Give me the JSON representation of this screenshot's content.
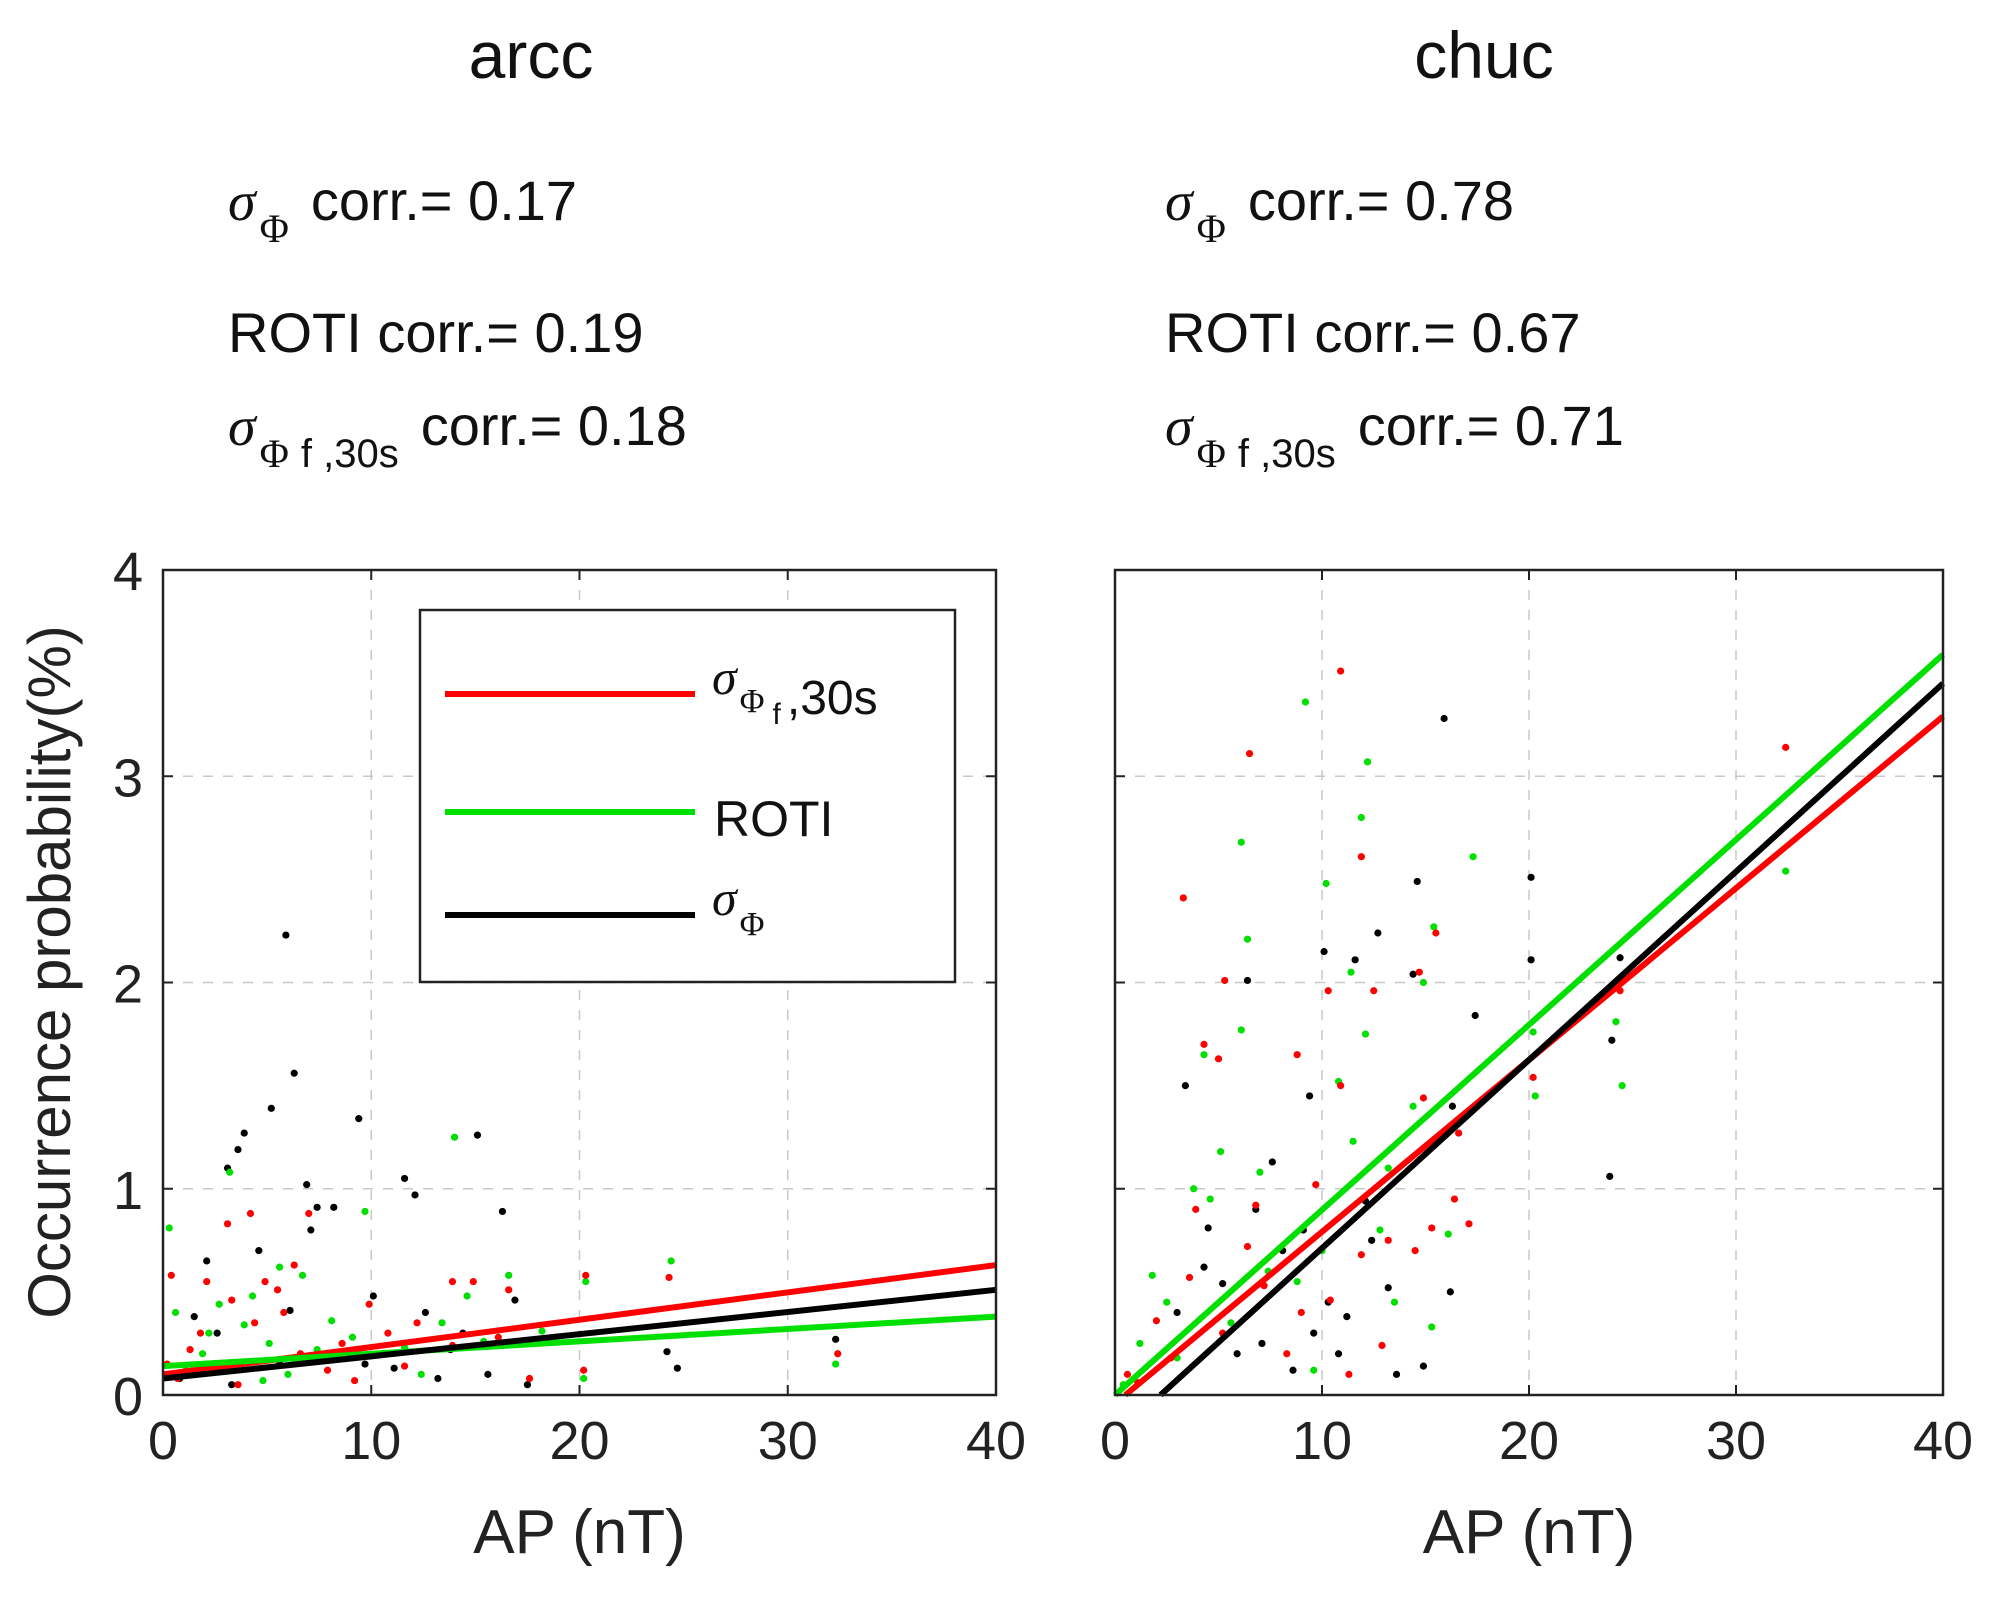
{
  "y_axis_label": "Occurrence probability(%)",
  "chart_data": [
    {
      "type": "scatter",
      "title": "arcc",
      "xlabel": "AP (nT)",
      "ylabel": "Occurrence probability(%)",
      "xlim": [
        0,
        40
      ],
      "ylim": [
        0,
        4
      ],
      "xticks": [
        "0",
        "10",
        "20",
        "30",
        "40"
      ],
      "yticks": [
        "0",
        "1",
        "2",
        "3",
        "4"
      ],
      "grid": true,
      "correlations": [
        {
          "label": "corr.= 0.17",
          "value": 0.17
        },
        {
          "label": "ROTI corr.= 0.19",
          "value": 0.19
        },
        {
          "label": "corr.= 0.18",
          "value": 0.18
        }
      ],
      "legend": {
        "position": "top-right",
        "entries": [
          {
            "name": "σΦf,30s",
            "text": ",30s",
            "color": "#ff0000"
          },
          {
            "name": "ROTI",
            "text": "ROTI",
            "color": "#00e000"
          },
          {
            "name": "σΦ",
            "text": "",
            "color": "#000000"
          }
        ]
      },
      "fit_lines": [
        {
          "name": "σΦf,30s",
          "color": "#ff0000",
          "x": [
            0,
            40
          ],
          "y": [
            0.1,
            0.63
          ]
        },
        {
          "name": "ROTI",
          "color": "#00e000",
          "x": [
            0,
            40
          ],
          "y": [
            0.14,
            0.38
          ]
        },
        {
          "name": "σΦ",
          "color": "#000000",
          "x": [
            0,
            40
          ],
          "y": [
            0.08,
            0.51
          ]
        }
      ],
      "series": [
        {
          "name": "σΦ",
          "color": "#000000",
          "points": [
            [
              5.9,
              2.23
            ],
            [
              6.3,
              1.56
            ],
            [
              5.2,
              1.39
            ],
            [
              3.9,
              1.27
            ],
            [
              9.4,
              1.34
            ],
            [
              3.1,
              1.1
            ],
            [
              3.6,
              1.19
            ],
            [
              11.6,
              1.05
            ],
            [
              12.1,
              0.97
            ],
            [
              15.1,
              1.26
            ],
            [
              16.3,
              0.89
            ],
            [
              6.9,
              1.02
            ],
            [
              7.1,
              0.8
            ],
            [
              7.4,
              0.91
            ],
            [
              8.2,
              0.91
            ],
            [
              2.1,
              0.65
            ],
            [
              4.6,
              0.7
            ],
            [
              10.1,
              0.48
            ],
            [
              12.6,
              0.4
            ],
            [
              14.4,
              0.3
            ],
            [
              16.9,
              0.46
            ],
            [
              24.2,
              0.21
            ],
            [
              24.7,
              0.13
            ],
            [
              32.3,
              0.27
            ],
            [
              13.2,
              0.08
            ],
            [
              15.6,
              0.1
            ],
            [
              17.5,
              0.05
            ],
            [
              1.5,
              0.38
            ],
            [
              2.6,
              0.3
            ],
            [
              5.6,
              0.15
            ],
            [
              8.9,
              0.2
            ],
            [
              11.1,
              0.13
            ],
            [
              0.8,
              0.08
            ],
            [
              3.3,
              0.05
            ],
            [
              6.1,
              0.41
            ],
            [
              9.7,
              0.15
            ],
            [
              13.8,
              0.22
            ]
          ]
        },
        {
          "name": "ROTI",
          "color": "#00e000",
          "points": [
            [
              0.3,
              0.81
            ],
            [
              14.0,
              1.25
            ],
            [
              9.7,
              0.89
            ],
            [
              3.2,
              1.08
            ],
            [
              4.3,
              0.48
            ],
            [
              6.7,
              0.58
            ],
            [
              2.2,
              0.3
            ],
            [
              5.1,
              0.25
            ],
            [
              8.1,
              0.36
            ],
            [
              11.6,
              0.23
            ],
            [
              14.6,
              0.48
            ],
            [
              16.6,
              0.58
            ],
            [
              24.4,
              0.65
            ],
            [
              20.3,
              0.55
            ],
            [
              32.3,
              0.15
            ],
            [
              18.2,
              0.31
            ],
            [
              12.4,
              0.1
            ],
            [
              7.4,
              0.22
            ],
            [
              1.1,
              0.12
            ],
            [
              3.9,
              0.34
            ],
            [
              10.6,
              0.2
            ],
            [
              20.2,
              0.08
            ],
            [
              6.0,
              0.1
            ],
            [
              2.7,
              0.44
            ],
            [
              15.4,
              0.26
            ],
            [
              0.6,
              0.4
            ],
            [
              4.8,
              0.07
            ],
            [
              9.1,
              0.28
            ],
            [
              13.4,
              0.35
            ],
            [
              5.6,
              0.62
            ],
            [
              1.9,
              0.2
            ]
          ]
        },
        {
          "name": "σΦf,30s",
          "color": "#ff0000",
          "points": [
            [
              3.1,
              0.83
            ],
            [
              4.2,
              0.88
            ],
            [
              7.0,
              0.88
            ],
            [
              0.4,
              0.58
            ],
            [
              2.1,
              0.55
            ],
            [
              3.3,
              0.46
            ],
            [
              5.5,
              0.51
            ],
            [
              6.3,
              0.63
            ],
            [
              9.9,
              0.44
            ],
            [
              13.9,
              0.55
            ],
            [
              14.9,
              0.55
            ],
            [
              16.6,
              0.51
            ],
            [
              20.3,
              0.58
            ],
            [
              24.3,
              0.57
            ],
            [
              32.4,
              0.2
            ],
            [
              17.6,
              0.08
            ],
            [
              13.9,
              0.24
            ],
            [
              12.2,
              0.35
            ],
            [
              10.8,
              0.3
            ],
            [
              8.6,
              0.25
            ],
            [
              1.3,
              0.22
            ],
            [
              2.5,
              0.15
            ],
            [
              4.4,
              0.35
            ],
            [
              5.8,
              0.4
            ],
            [
              0.7,
              0.08
            ],
            [
              7.9,
              0.12
            ],
            [
              3.6,
              0.05
            ],
            [
              1.8,
              0.3
            ],
            [
              11.6,
              0.14
            ],
            [
              16.1,
              0.28
            ],
            [
              20.2,
              0.12
            ],
            [
              9.2,
              0.07
            ],
            [
              6.6,
              0.2
            ],
            [
              0.2,
              0.15
            ],
            [
              4.9,
              0.55
            ]
          ]
        }
      ]
    },
    {
      "type": "scatter",
      "title": "chuc",
      "xlabel": "AP (nT)",
      "ylabel": "",
      "xlim": [
        0,
        40
      ],
      "ylim": [
        0,
        4
      ],
      "xticks": [
        "0",
        "10",
        "20",
        "30",
        "40"
      ],
      "yticks": [],
      "grid": true,
      "correlations": [
        {
          "label": "corr.= 0.78",
          "value": 0.78
        },
        {
          "label": "ROTI corr.= 0.67",
          "value": 0.67
        },
        {
          "label": "corr.= 0.71",
          "value": 0.71
        }
      ],
      "fit_lines": [
        {
          "name": "σΦf,30s",
          "color": "#ff0000",
          "x": [
            0.5,
            40
          ],
          "y": [
            0.0,
            3.29
          ]
        },
        {
          "name": "ROTI",
          "color": "#00e000",
          "x": [
            0,
            40
          ],
          "y": [
            0.0,
            3.59
          ]
        },
        {
          "name": "σΦ",
          "color": "#000000",
          "x": [
            2.2,
            40
          ],
          "y": [
            0.0,
            3.45
          ]
        }
      ],
      "series": [
        {
          "name": "σΦ",
          "color": "#000000",
          "points": [
            [
              15.9,
              3.28
            ],
            [
              20.1,
              2.51
            ],
            [
              14.6,
              2.49
            ],
            [
              12.7,
              2.24
            ],
            [
              10.1,
              2.15
            ],
            [
              11.6,
              2.11
            ],
            [
              20.1,
              2.11
            ],
            [
              14.4,
              2.04
            ],
            [
              6.4,
              2.01
            ],
            [
              3.4,
              1.5
            ],
            [
              16.3,
              1.4
            ],
            [
              17.4,
              1.84
            ],
            [
              9.4,
              1.45
            ],
            [
              24.0,
              1.72
            ],
            [
              23.9,
              1.06
            ],
            [
              24.4,
              2.12
            ],
            [
              6.8,
              0.9
            ],
            [
              8.1,
              0.7
            ],
            [
              12.4,
              0.75
            ],
            [
              10.3,
              0.45
            ],
            [
              13.2,
              0.52
            ],
            [
              14.9,
              0.14
            ],
            [
              13.6,
              0.1
            ],
            [
              4.5,
              0.81
            ],
            [
              5.2,
              0.54
            ],
            [
              7.1,
              0.25
            ],
            [
              9.6,
              0.3
            ],
            [
              11.2,
              0.38
            ],
            [
              3.0,
              0.4
            ],
            [
              16.2,
              0.5
            ],
            [
              8.6,
              0.12
            ],
            [
              5.9,
              0.2
            ],
            [
              7.6,
              1.13
            ],
            [
              9.1,
              0.8
            ],
            [
              12.1,
              0.94
            ],
            [
              4.3,
              0.62
            ],
            [
              10.8,
              0.2
            ]
          ]
        },
        {
          "name": "ROTI",
          "color": "#00e000",
          "points": [
            [
              9.2,
              3.36
            ],
            [
              12.2,
              3.07
            ],
            [
              6.1,
              2.68
            ],
            [
              11.9,
              2.8
            ],
            [
              17.3,
              2.61
            ],
            [
              10.2,
              2.48
            ],
            [
              6.4,
              2.21
            ],
            [
              15.4,
              2.27
            ],
            [
              11.4,
              2.05
            ],
            [
              14.9,
              2.0
            ],
            [
              6.1,
              1.77
            ],
            [
              12.1,
              1.75
            ],
            [
              4.3,
              1.65
            ],
            [
              10.8,
              1.52
            ],
            [
              14.4,
              1.4
            ],
            [
              24.5,
              1.5
            ],
            [
              24.2,
              1.81
            ],
            [
              20.2,
              1.76
            ],
            [
              20.3,
              1.45
            ],
            [
              32.4,
              2.54
            ],
            [
              5.1,
              1.18
            ],
            [
              3.8,
              1.0
            ],
            [
              7.0,
              1.08
            ],
            [
              10.0,
              0.7
            ],
            [
              12.8,
              0.8
            ],
            [
              13.5,
              0.45
            ],
            [
              15.3,
              0.33
            ],
            [
              8.8,
              0.55
            ],
            [
              2.5,
              0.45
            ],
            [
              5.6,
              0.35
            ],
            [
              1.2,
              0.25
            ],
            [
              3.0,
              0.18
            ],
            [
              16.1,
              0.78
            ],
            [
              11.5,
              1.23
            ],
            [
              13.2,
              1.1
            ],
            [
              4.6,
              0.95
            ],
            [
              7.4,
              0.6
            ],
            [
              0.4,
              0.05
            ],
            [
              9.6,
              0.12
            ],
            [
              1.8,
              0.58
            ]
          ]
        },
        {
          "name": "σΦf,30s",
          "color": "#ff0000",
          "points": [
            [
              10.9,
              3.51
            ],
            [
              6.5,
              3.11
            ],
            [
              32.4,
              3.14
            ],
            [
              3.3,
              2.41
            ],
            [
              11.9,
              2.61
            ],
            [
              15.5,
              2.24
            ],
            [
              5.3,
              2.01
            ],
            [
              10.3,
              1.96
            ],
            [
              12.5,
              1.96
            ],
            [
              14.7,
              2.05
            ],
            [
              4.3,
              1.7
            ],
            [
              5.0,
              1.63
            ],
            [
              8.8,
              1.65
            ],
            [
              10.9,
              1.5
            ],
            [
              14.9,
              1.44
            ],
            [
              20.2,
              1.54
            ],
            [
              24.4,
              1.96
            ],
            [
              16.6,
              1.27
            ],
            [
              17.1,
              0.83
            ],
            [
              15.3,
              0.81
            ],
            [
              13.2,
              0.75
            ],
            [
              11.9,
              0.68
            ],
            [
              10.4,
              0.46
            ],
            [
              9.0,
              0.4
            ],
            [
              7.2,
              0.53
            ],
            [
              6.4,
              0.72
            ],
            [
              5.2,
              0.3
            ],
            [
              3.6,
              0.57
            ],
            [
              2.7,
              0.18
            ],
            [
              1.1,
              0.06
            ],
            [
              8.3,
              0.2
            ],
            [
              12.9,
              0.24
            ],
            [
              14.5,
              0.7
            ],
            [
              9.7,
              1.02
            ],
            [
              11.3,
              0.1
            ],
            [
              16.4,
              0.95
            ],
            [
              3.9,
              0.9
            ],
            [
              6.8,
              0.92
            ],
            [
              0.6,
              0.1
            ],
            [
              2.0,
              0.36
            ]
          ]
        }
      ]
    }
  ]
}
